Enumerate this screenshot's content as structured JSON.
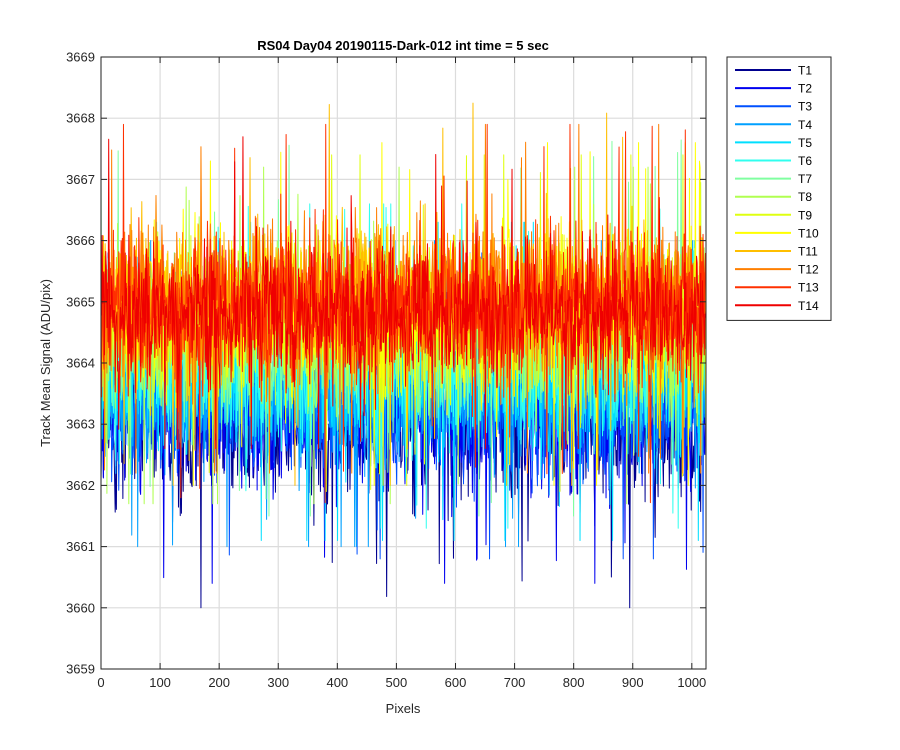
{
  "chart_data": {
    "type": "line",
    "title": "RS04 Day04 20190115-Dark-012 int time = 5 sec",
    "xlabel": "Pixels",
    "ylabel": "Track Mean Signal (ADU/pix)",
    "xlim": [
      0,
      1024
    ],
    "ylim": [
      3659,
      3669
    ],
    "xticks": [
      0,
      100,
      200,
      300,
      400,
      500,
      600,
      700,
      800,
      900,
      1000
    ],
    "yticks": [
      3659,
      3660,
      3661,
      3662,
      3663,
      3664,
      3665,
      3666,
      3667,
      3668,
      3669
    ],
    "grid": true,
    "legend_position": "outside-top-right",
    "n_points_per_series": 1024,
    "series": [
      {
        "name": "T1",
        "color": "#00008f",
        "mean": 3663.0,
        "spread": 1.6,
        "min": 3660.0,
        "max": 3665.2
      },
      {
        "name": "T2",
        "color": "#0000ef",
        "mean": 3663.2,
        "spread": 1.6,
        "min": 3660.4,
        "max": 3665.5
      },
      {
        "name": "T3",
        "color": "#0050ff",
        "mean": 3663.4,
        "spread": 1.6,
        "min": 3660.8,
        "max": 3665.8
      },
      {
        "name": "T4",
        "color": "#00a0ff",
        "mean": 3663.6,
        "spread": 1.6,
        "min": 3661.0,
        "max": 3666.0
      },
      {
        "name": "T5",
        "color": "#00dfff",
        "mean": 3663.8,
        "spread": 1.6,
        "min": 3661.1,
        "max": 3666.3
      },
      {
        "name": "T6",
        "color": "#30ffef",
        "mean": 3664.0,
        "spread": 1.6,
        "min": 3661.3,
        "max": 3666.6
      },
      {
        "name": "T7",
        "color": "#80ffa0",
        "mean": 3664.3,
        "spread": 1.6,
        "min": 3661.5,
        "max": 3668.1
      },
      {
        "name": "T8",
        "color": "#b0ff50",
        "mean": 3664.5,
        "spread": 1.6,
        "min": 3661.7,
        "max": 3667.2
      },
      {
        "name": "T9",
        "color": "#dfff10",
        "mean": 3664.7,
        "spread": 1.6,
        "min": 3661.9,
        "max": 3667.4
      },
      {
        "name": "T10",
        "color": "#ffff00",
        "mean": 3664.9,
        "spread": 1.6,
        "min": 3662.0,
        "max": 3667.6
      },
      {
        "name": "T11",
        "color": "#ffbf00",
        "mean": 3665.0,
        "spread": 1.6,
        "min": 3662.0,
        "max": 3668.6
      },
      {
        "name": "T12",
        "color": "#ff7f00",
        "mean": 3665.0,
        "spread": 1.6,
        "min": 3662.2,
        "max": 3667.9
      },
      {
        "name": "T13",
        "color": "#ff3000",
        "mean": 3664.9,
        "spread": 1.6,
        "min": 3661.4,
        "max": 3667.9
      },
      {
        "name": "T14",
        "color": "#ef0000",
        "mean": 3664.8,
        "spread": 1.4,
        "min": 3662.6,
        "max": 3667.9
      }
    ]
  }
}
